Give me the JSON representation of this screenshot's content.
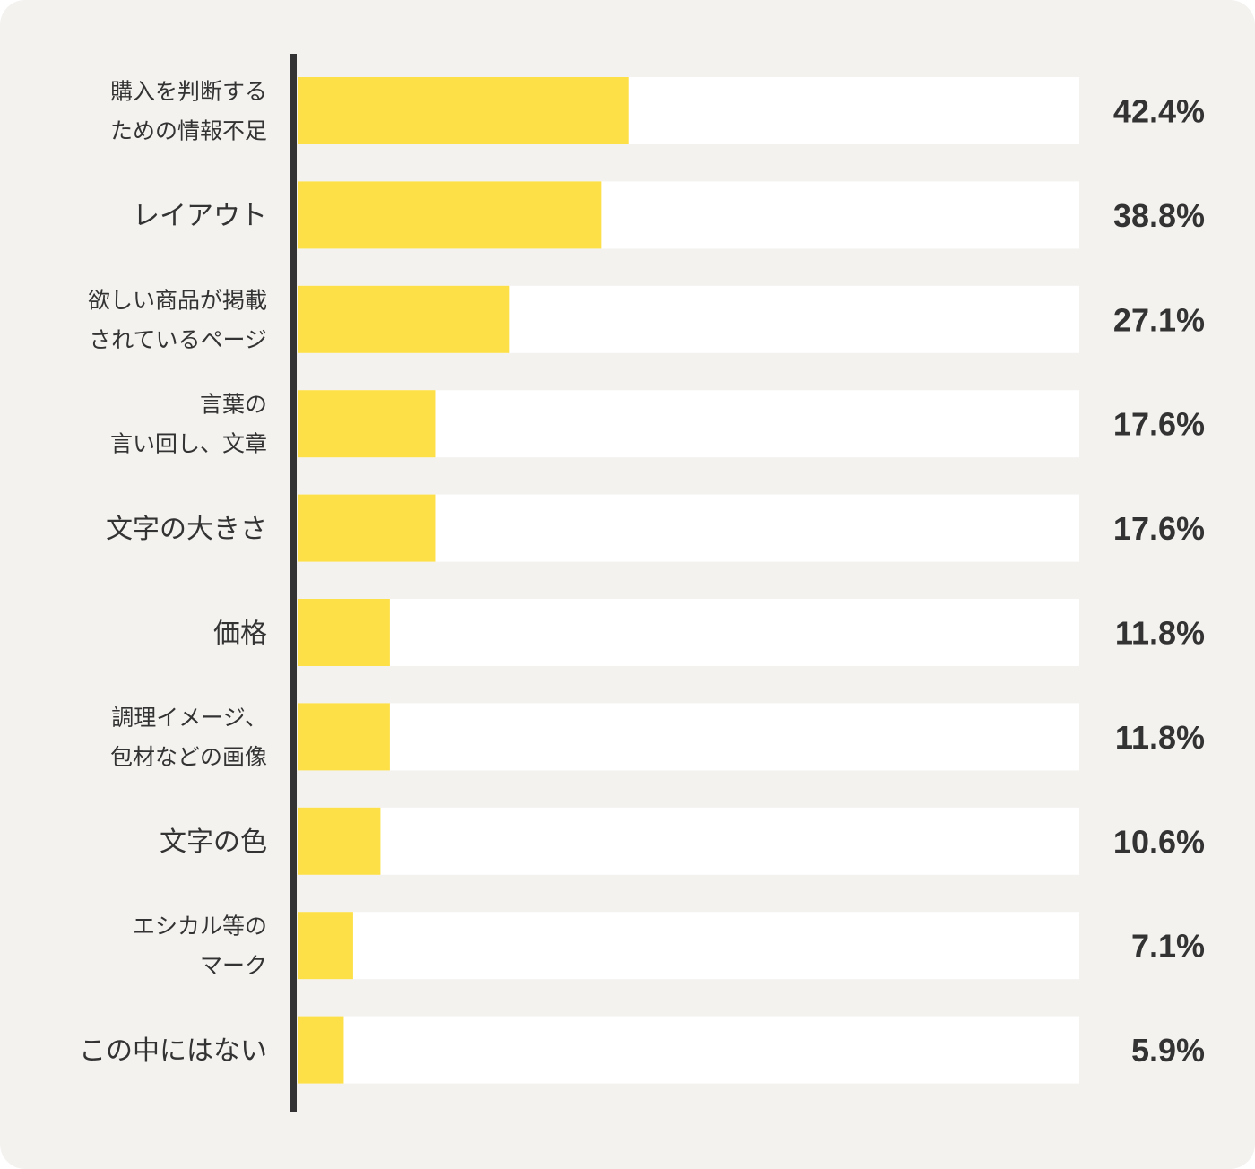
{
  "chart_data": {
    "type": "bar",
    "orientation": "horizontal",
    "categories": [
      [
        "購入を判断する",
        "ための情報不足"
      ],
      [
        "レイアウト"
      ],
      [
        "欲しい商品が掲載",
        "されているページ"
      ],
      [
        "言葉の",
        "言い回し、文章"
      ],
      [
        "文字の大きさ"
      ],
      [
        "価格"
      ],
      [
        "調理イメージ、",
        "包材などの画像"
      ],
      [
        "文字の色"
      ],
      [
        "エシカル等の",
        "マーク"
      ],
      [
        "この中にはない"
      ]
    ],
    "values": [
      42.4,
      38.8,
      27.1,
      17.6,
      17.6,
      11.8,
      11.8,
      10.6,
      7.1,
      5.9
    ],
    "value_labels": [
      "42.4%",
      "38.8%",
      "27.1%",
      "17.6%",
      "17.6%",
      "11.8%",
      "11.8%",
      "10.6%",
      "7.1%",
      "5.9%"
    ],
    "xlim": [
      0,
      100
    ],
    "grid": false,
    "legend": "none"
  },
  "colors": {
    "background": "#f3f2ef",
    "track": "#ffffff",
    "bar": "#fde047",
    "axis": "#333333",
    "label_text": "#333333",
    "value_text": "#333333"
  }
}
